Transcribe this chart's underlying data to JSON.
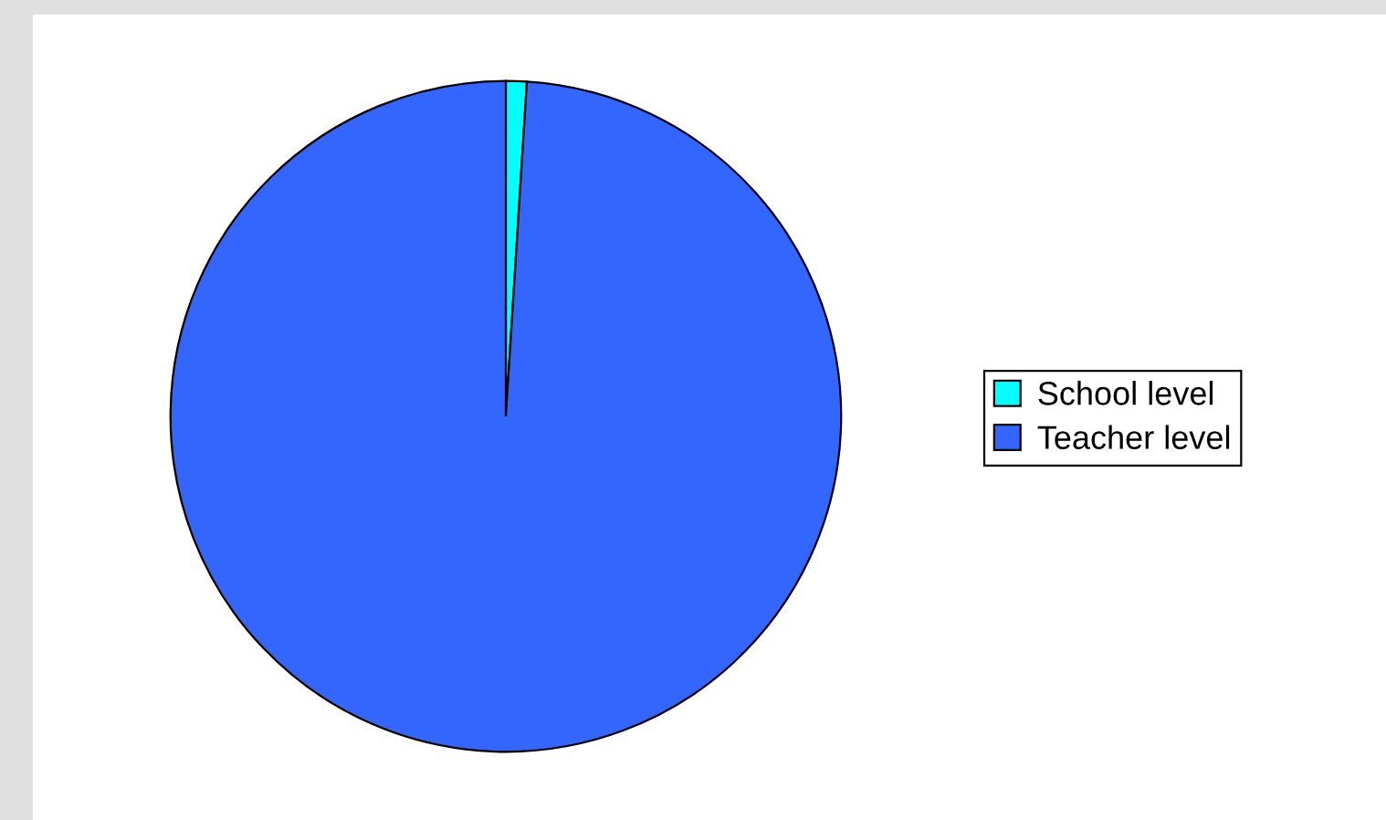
{
  "chart_data": {
    "type": "pie",
    "categories": [
      "School level",
      "Teacher level"
    ],
    "values": [
      1,
      99
    ],
    "colors": [
      "#00ffff",
      "#3366ff"
    ],
    "legend": "right"
  }
}
